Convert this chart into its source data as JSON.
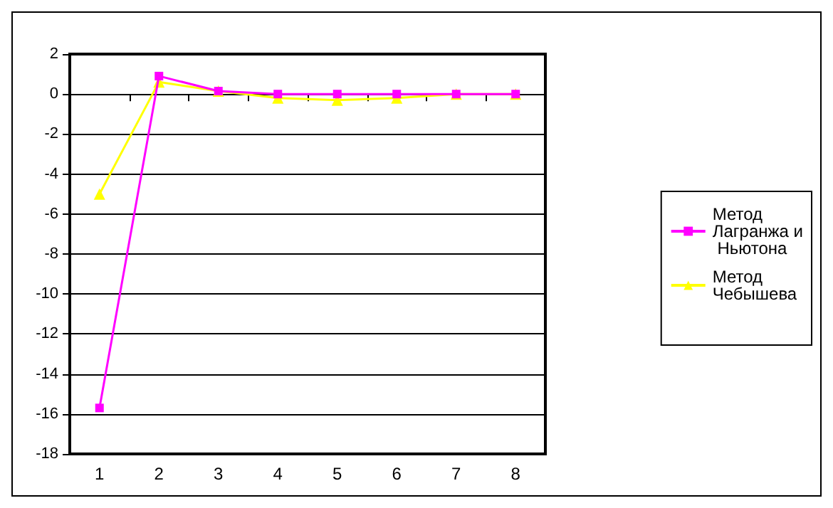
{
  "chart_data": {
    "type": "line",
    "categories": [
      "1",
      "2",
      "3",
      "4",
      "5",
      "6",
      "7",
      "8"
    ],
    "series": [
      {
        "name": "Метод Лагранжа и Ньютона",
        "color": "#ff00ff",
        "marker": "square",
        "values": [
          -15.7,
          0.9,
          0.15,
          0,
          0,
          0,
          0,
          0
        ]
      },
      {
        "name": "Метод Чебышева",
        "color": "#ffff00",
        "marker": "triangle",
        "values": [
          -5,
          0.6,
          0.15,
          -0.2,
          -0.3,
          -0.2,
          0,
          0
        ]
      }
    ],
    "ylim": [
      -18,
      2
    ],
    "yticks": [
      -18,
      -16,
      -14,
      -12,
      -10,
      -8,
      -6,
      -4,
      -2,
      0,
      2
    ],
    "grid": "y",
    "legend": "right",
    "line_style": "solid"
  }
}
